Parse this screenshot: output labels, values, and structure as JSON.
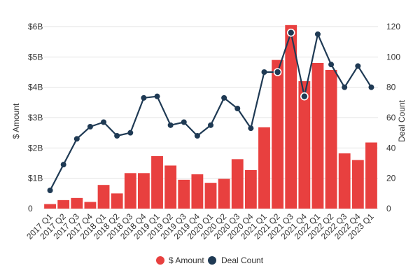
{
  "chart_data": {
    "type": "bar",
    "categories": [
      "2017 Q1",
      "2017 Q2",
      "2017 Q3",
      "2017 Q4",
      "2018 Q1",
      "2018 Q2",
      "2018 Q3",
      "2018 Q4",
      "2019 Q1",
      "2019 Q2",
      "2019 Q3",
      "2019 Q4",
      "2020 Q1",
      "2020 Q2",
      "2020 Q3",
      "2020 Q4",
      "2021 Q1",
      "2021 Q2",
      "2021 Q3",
      "2021 Q4",
      "2022 Q1",
      "2022 Q2",
      "2022 Q3",
      "2022 Q4",
      "2023 Q1"
    ],
    "series": [
      {
        "name": "$ Amount",
        "type": "bar",
        "axis": "left",
        "color": "#e8403f",
        "values": [
          0.15,
          0.28,
          0.35,
          0.22,
          0.78,
          0.5,
          1.17,
          1.17,
          1.73,
          1.42,
          0.95,
          1.13,
          0.85,
          0.98,
          1.63,
          1.27,
          2.68,
          4.9,
          6.05,
          4.2,
          4.8,
          4.57,
          1.82,
          1.6,
          2.18
        ]
      },
      {
        "name": "Deal Count",
        "type": "line",
        "axis": "right",
        "color": "#1f3a54",
        "values": [
          12,
          29,
          46,
          54,
          57,
          48,
          50,
          73,
          74,
          55,
          57,
          48,
          55,
          73,
          66,
          53,
          90,
          90,
          116,
          74,
          115,
          95,
          80,
          94,
          80
        ]
      }
    ],
    "left_axis": {
      "label": "$ Amount",
      "ylim": [
        0,
        6
      ],
      "ticks": [
        0,
        1,
        2,
        3,
        4,
        5,
        6
      ],
      "tick_labels": [
        "0",
        "$1B",
        "$2B",
        "$3B",
        "$4B",
        "$5B",
        "$6B"
      ]
    },
    "right_axis": {
      "label": "Deal Count",
      "ylim": [
        0,
        120
      ],
      "ticks": [
        0,
        20,
        40,
        60,
        80,
        100,
        120
      ],
      "tick_labels": [
        "0",
        "20",
        "40",
        "60",
        "80",
        "100",
        "120"
      ]
    },
    "highlighted_points": [
      "2021 Q2",
      "2021 Q3",
      "2021 Q4"
    ],
    "grid": true,
    "legend_position": "bottom"
  }
}
